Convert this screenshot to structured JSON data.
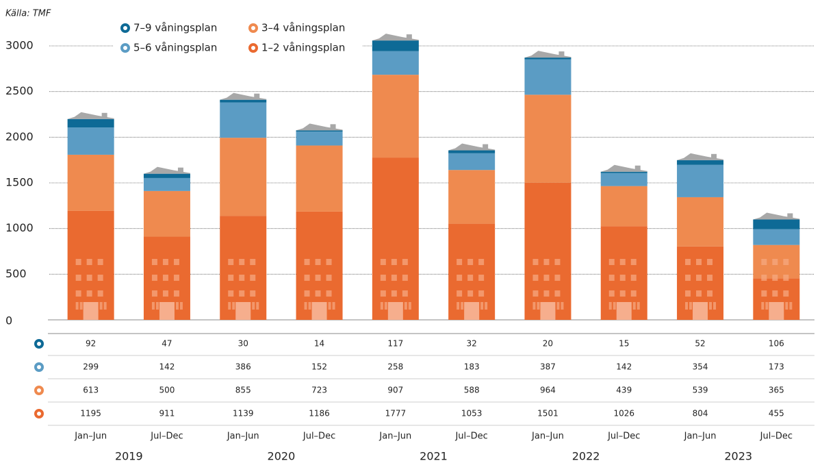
{
  "chart_data": {
    "type": "stacked-bar",
    "source": "Källa: TMF",
    "categories": [
      "Jan–Jun",
      "Jul–Dec",
      "Jan–Jun",
      "Jul–Dec",
      "Jan–Jun",
      "Jul–Dec",
      "Jan–Jun",
      "Jul–Dec",
      "Jan–Jun",
      "Jul–Dec"
    ],
    "years": [
      "2019",
      "2020",
      "2021",
      "2022",
      "2023"
    ],
    "series": [
      {
        "name": "1–2 våningsplan",
        "color": "#ea6a30",
        "values": [
          1195,
          911,
          1139,
          1186,
          1777,
          1053,
          1501,
          1026,
          804,
          455
        ]
      },
      {
        "name": "3–4 våningsplan",
        "color": "#ef8a4f",
        "values": [
          613,
          500,
          855,
          723,
          907,
          588,
          964,
          439,
          539,
          365
        ]
      },
      {
        "name": "5–6 våningsplan",
        "color": "#5b9cc4",
        "values": [
          299,
          142,
          386,
          152,
          258,
          183,
          387,
          142,
          354,
          173
        ]
      },
      {
        "name": "7–9 våningsplan",
        "color": "#0e6a96",
        "values": [
          92,
          47,
          30,
          14,
          117,
          32,
          20,
          15,
          52,
          106
        ]
      }
    ],
    "ylim": [
      0,
      3000
    ],
    "yticks": [
      0,
      500,
      1000,
      1500,
      2000,
      2500,
      3000
    ],
    "grid": true
  }
}
